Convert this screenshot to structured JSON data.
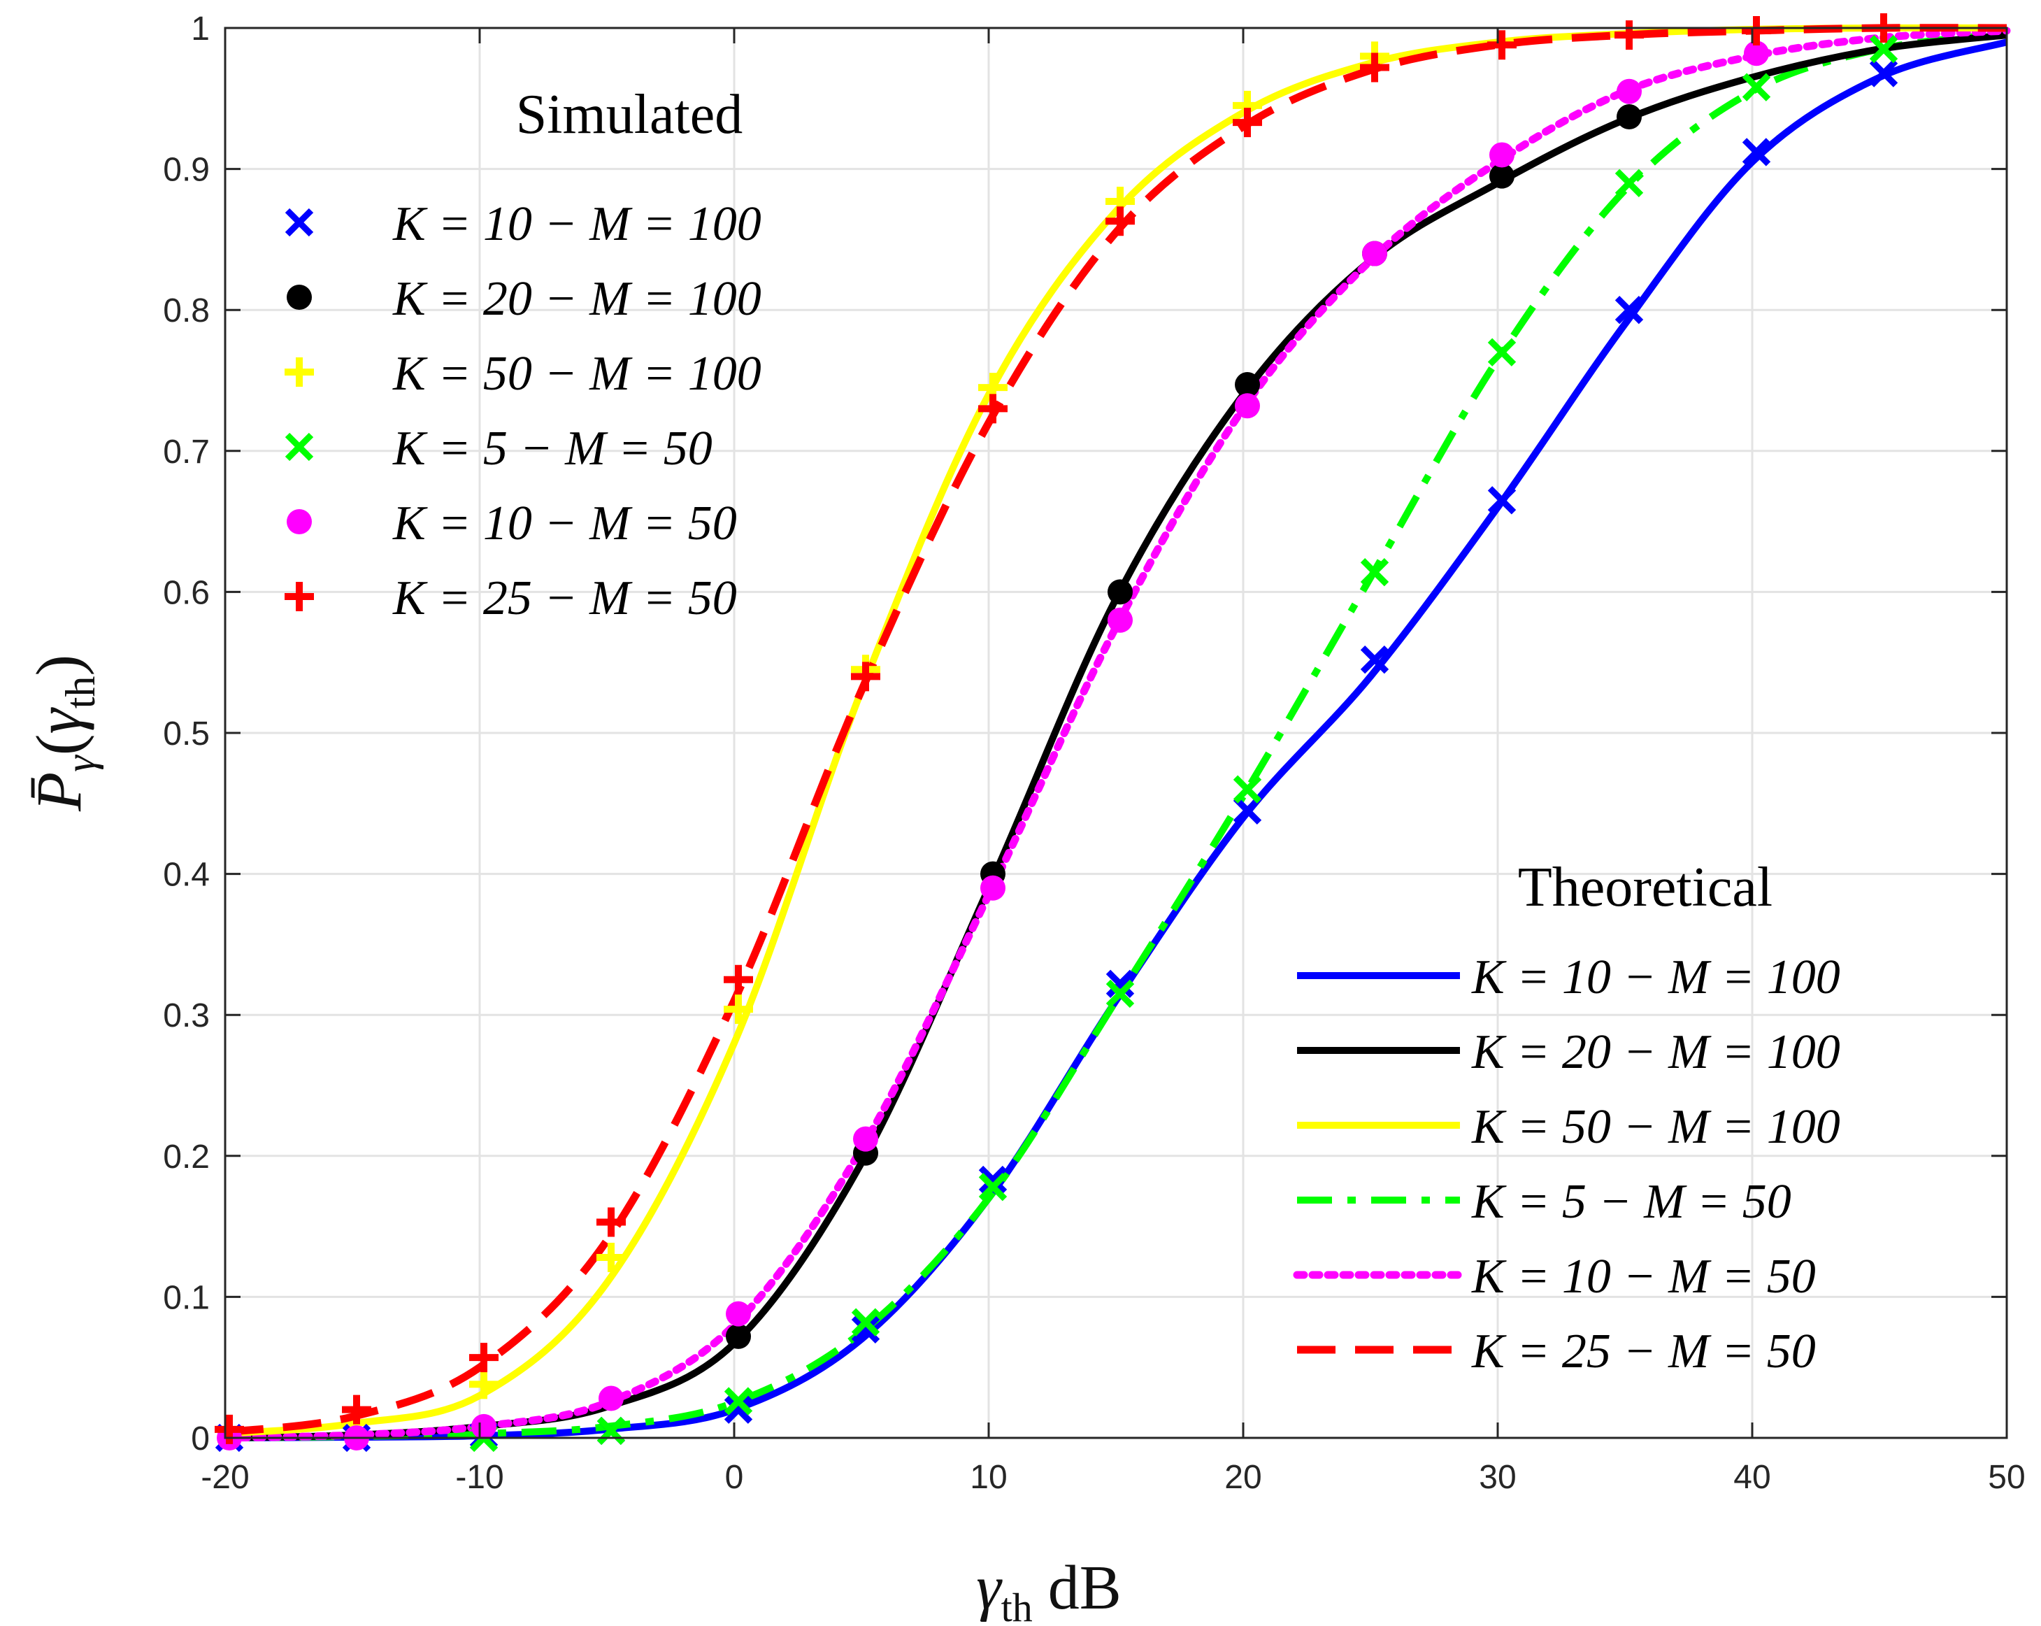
{
  "chart_data": {
    "type": "line",
    "xlabel": {
      "symbol": "γ",
      "subscript": "th",
      "unit": "dB"
    },
    "ylabel": {
      "symbol": "P̄",
      "subscript": "γ",
      "argument_symbol": "γ",
      "argument_subscript": "th"
    },
    "xlim": [
      -20,
      50
    ],
    "ylim": [
      0,
      1
    ],
    "xticks": [
      "-20",
      "-10",
      "0",
      "10",
      "20",
      "30",
      "40",
      "50"
    ],
    "yticks": [
      "0",
      "0.1",
      "0.2",
      "0.3",
      "0.4",
      "0.5",
      "0.6",
      "0.7",
      "0.8",
      "0.9",
      "1"
    ],
    "grid": true,
    "x": [
      -20,
      -15,
      -10,
      -5,
      0,
      5,
      10,
      15,
      20,
      25,
      30,
      35,
      40,
      45,
      50
    ],
    "theoretical_series": [
      {
        "name": "K = 10 − M = 100",
        "color": "#0000ff",
        "style": "solid",
        "values": [
          0.0,
          0.0005,
          0.0015,
          0.006,
          0.02,
          0.07,
          0.17,
          0.31,
          0.44,
          0.54,
          0.66,
          0.79,
          0.905,
          0.965,
          0.99
        ]
      },
      {
        "name": "K = 20 − M = 100",
        "color": "#000000",
        "style": "solid",
        "values": [
          0.0,
          0.002,
          0.008,
          0.022,
          0.067,
          0.195,
          0.39,
          0.595,
          0.74,
          0.835,
          0.89,
          0.935,
          0.965,
          0.985,
          0.995
        ]
      },
      {
        "name": "K = 50 − M = 100",
        "color": "#ffff00",
        "style": "solid",
        "values": [
          0.003,
          0.01,
          0.03,
          0.11,
          0.28,
          0.53,
          0.74,
          0.87,
          0.94,
          0.975,
          0.99,
          0.996,
          0.999,
          1.0,
          1.0
        ]
      },
      {
        "name": "K = 5 − M = 50",
        "color": "#00ff00",
        "style": "dashdot",
        "values": [
          0.0,
          0.001,
          0.003,
          0.008,
          0.025,
          0.075,
          0.17,
          0.31,
          0.455,
          0.61,
          0.765,
          0.885,
          0.955,
          0.985,
          0.996
        ]
      },
      {
        "name": "K = 10 − M = 50",
        "color": "#ff00ff",
        "style": "dotted",
        "values": [
          0.0,
          0.002,
          0.008,
          0.025,
          0.08,
          0.205,
          0.385,
          0.575,
          0.73,
          0.835,
          0.905,
          0.955,
          0.98,
          0.993,
          0.998
        ]
      },
      {
        "name": "K = 25 − M = 50",
        "color": "#ff0000",
        "style": "dashed",
        "values": [
          0.004,
          0.015,
          0.05,
          0.14,
          0.31,
          0.53,
          0.72,
          0.855,
          0.93,
          0.97,
          0.988,
          0.995,
          0.998,
          1.0,
          1.0
        ]
      }
    ],
    "simulated_series": [
      {
        "name": "K = 10 − M = 100",
        "color": "#0000ff",
        "marker": "x",
        "x": [
          -20,
          -15,
          -10,
          -5,
          0,
          5,
          10,
          15,
          20,
          25,
          30,
          35,
          40,
          45
        ],
        "values": [
          0.0,
          0.0,
          0.002,
          0.005,
          0.02,
          0.077,
          0.183,
          0.322,
          0.445,
          0.552,
          0.665,
          0.8,
          0.912,
          0.968
        ]
      },
      {
        "name": "K = 20 − M = 100",
        "color": "#000000",
        "marker": "o",
        "x": [
          0,
          5,
          10,
          15,
          20,
          25,
          30,
          35
        ],
        "values": [
          0.072,
          0.202,
          0.4,
          0.6,
          0.747,
          0.84,
          0.895,
          0.937
        ]
      },
      {
        "name": "K = 50 − M = 100",
        "color": "#ffff00",
        "marker": "+",
        "x": [
          -10,
          -5,
          0,
          5,
          10,
          15,
          20,
          25
        ],
        "values": [
          0.038,
          0.128,
          0.304,
          0.545,
          0.745,
          0.877,
          0.945,
          0.98
        ]
      },
      {
        "name": "K = 5 − M = 50",
        "color": "#00ff00",
        "marker": "x",
        "x": [
          -10,
          -5,
          0,
          5,
          10,
          15,
          20,
          25,
          30,
          35,
          40,
          45
        ],
        "values": [
          0.0,
          0.005,
          0.026,
          0.082,
          0.178,
          0.315,
          0.46,
          0.614,
          0.77,
          0.89,
          0.958,
          0.985
        ]
      },
      {
        "name": "K = 10 − M = 50",
        "color": "#ff00ff",
        "marker": "o",
        "x": [
          -20,
          -15,
          -10,
          -5,
          0,
          5,
          10,
          15,
          20,
          25,
          30,
          35,
          40
        ],
        "values": [
          0.0,
          0.0,
          0.008,
          0.028,
          0.088,
          0.212,
          0.39,
          0.58,
          0.732,
          0.84,
          0.91,
          0.955,
          0.982
        ]
      },
      {
        "name": "K = 25 − M = 50",
        "color": "#ff0000",
        "marker": "+",
        "x": [
          -20,
          -15,
          -10,
          -5,
          0,
          5,
          10,
          15,
          20,
          25,
          30,
          35,
          40,
          45
        ],
        "values": [
          0.006,
          0.02,
          0.057,
          0.153,
          0.325,
          0.54,
          0.73,
          0.863,
          0.933,
          0.972,
          0.988,
          0.995,
          0.998,
          1.0
        ]
      }
    ],
    "legends": [
      {
        "title": "Simulated",
        "placement": "top-left",
        "kind": "markers"
      },
      {
        "title": "Theoretical",
        "placement": "bottom-right",
        "kind": "lines"
      }
    ]
  }
}
